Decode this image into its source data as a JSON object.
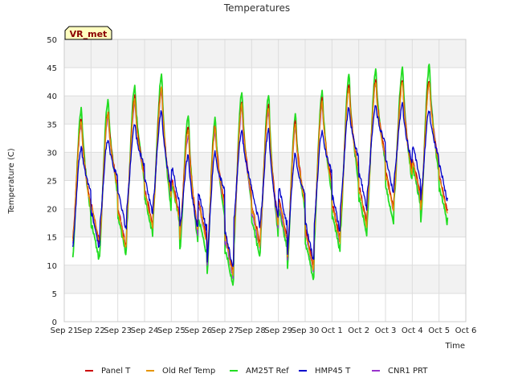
{
  "chart_data": {
    "type": "line",
    "title": "Temperatures",
    "xlabel": "Time",
    "ylabel": "Temperature (C)",
    "badge": "VR_met",
    "ylim": [
      0,
      50
    ],
    "yticks": [
      0,
      5,
      10,
      15,
      20,
      25,
      30,
      35,
      40,
      45,
      50
    ],
    "xlim": [
      0,
      15
    ],
    "xticks": [
      {
        "x": 0,
        "label": "Sep 21"
      },
      {
        "x": 1,
        "label": "Sep 22"
      },
      {
        "x": 2,
        "label": "Sep 23"
      },
      {
        "x": 3,
        "label": "Sep 24"
      },
      {
        "x": 4,
        "label": "Sep 25"
      },
      {
        "x": 5,
        "label": "Sep 26"
      },
      {
        "x": 6,
        "label": "Sep 27"
      },
      {
        "x": 7,
        "label": "Sep 28"
      },
      {
        "x": 8,
        "label": "Sep 29"
      },
      {
        "x": 9,
        "label": "Sep 30"
      },
      {
        "x": 10,
        "label": "Oct 1"
      },
      {
        "x": 11,
        "label": "Oct 2"
      },
      {
        "x": 12,
        "label": "Oct 3"
      },
      {
        "x": 13,
        "label": "Oct 4"
      },
      {
        "x": 14,
        "label": "Oct 5"
      },
      {
        "x": 15,
        "label": "Oct 6"
      }
    ],
    "x_unit": "days since Sep 21",
    "series": [
      {
        "name": "Panel T",
        "color": "#cc0000",
        "daily_min": [
          14.5,
          13.5,
          17.0,
          19.0,
          15.0,
          9.0,
          14.0,
          15.5,
          10.0,
          14.5,
          17.5,
          20.0,
          22.5,
          19.5
        ],
        "daily_max": [
          36.0,
          37.5,
          40.0,
          42.0,
          34.5,
          35.0,
          39.0,
          38.5,
          35.5,
          39.5,
          42.0,
          43.0,
          43.0,
          43.0
        ],
        "last_value": 21.0
      },
      {
        "name": "Old Ref Temp",
        "color": "#e69500",
        "daily_min": [
          14.0,
          13.0,
          16.5,
          18.5,
          14.5,
          8.5,
          13.5,
          15.0,
          9.5,
          14.0,
          17.0,
          19.5,
          22.0,
          19.0
        ],
        "daily_max": [
          35.5,
          37.0,
          39.5,
          41.5,
          34.0,
          34.5,
          38.5,
          38.0,
          35.0,
          39.0,
          41.5,
          42.5,
          42.5,
          42.5
        ],
        "last_value": 20.5
      },
      {
        "name": "AM25T Ref",
        "color": "#22dd22",
        "daily_min": [
          11.0,
          12.0,
          15.5,
          18.0,
          12.0,
          6.5,
          11.5,
          13.5,
          7.5,
          12.5,
          15.5,
          17.5,
          21.0,
          17.5
        ],
        "daily_max": [
          38.0,
          39.5,
          42.0,
          44.0,
          36.5,
          36.5,
          41.0,
          40.5,
          37.0,
          41.0,
          44.0,
          45.0,
          45.0,
          45.5
        ],
        "last_value": 19.0
      },
      {
        "name": "HMP45 T",
        "color": "#0000cc",
        "daily_min": [
          13.0,
          16.5,
          19.0,
          21.0,
          16.5,
          9.5,
          17.0,
          17.5,
          11.0,
          16.0,
          20.0,
          22.5,
          25.0,
          21.5
        ],
        "daily_max": [
          31.0,
          32.5,
          35.0,
          37.5,
          29.5,
          30.0,
          34.0,
          34.0,
          30.0,
          34.0,
          38.0,
          38.5,
          38.5,
          37.5
        ],
        "last_value": 22.5
      },
      {
        "name": "CNR1 PRT",
        "color": "#9933cc",
        "daily_min": [
          13.5,
          13.5,
          17.0,
          19.0,
          14.5,
          8.0,
          13.0,
          14.5,
          9.0,
          14.0,
          17.5,
          19.5,
          22.0,
          19.5
        ],
        "daily_max": [
          35.0,
          36.5,
          39.0,
          41.0,
          33.0,
          34.0,
          38.0,
          37.5,
          34.5,
          38.5,
          41.5,
          42.5,
          42.5,
          42.5
        ],
        "last_value": 21.5
      }
    ],
    "grid": true,
    "legend_position": "bottom"
  }
}
